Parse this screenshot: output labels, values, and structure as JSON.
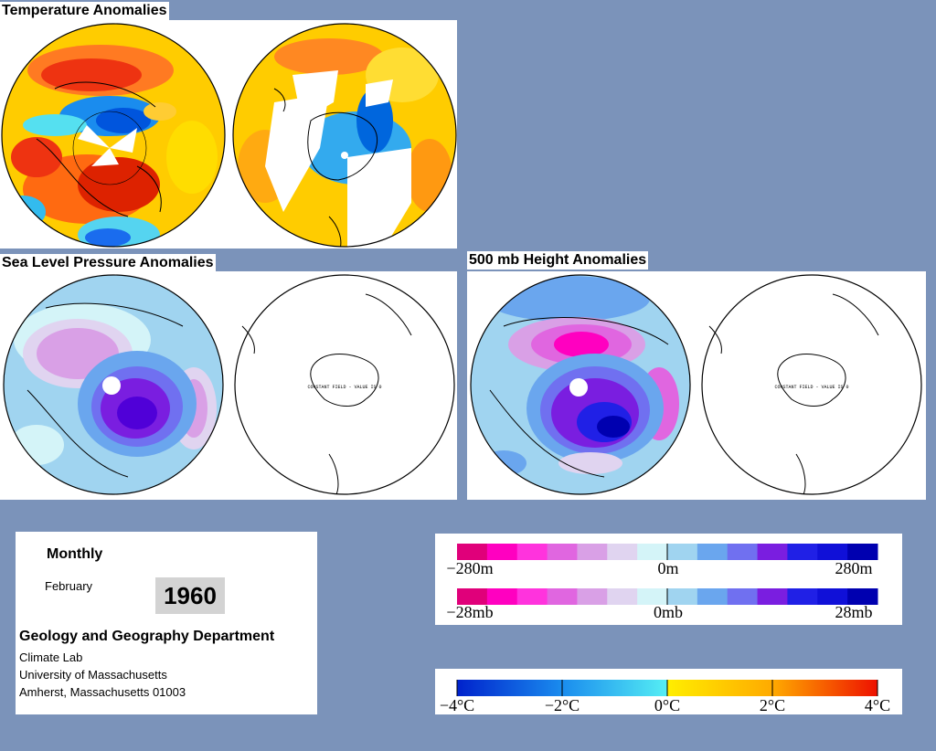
{
  "sections": {
    "temperature": {
      "title": "Temperature Anomalies"
    },
    "slp": {
      "title": "Sea Level Pressure Anomalies"
    },
    "height": {
      "title": "500 mb Height Anomalies"
    }
  },
  "constant_field_label": "CONSTANT FIELD - VALUE IS 0",
  "info": {
    "period": "Monthly",
    "month": "February",
    "year": "1960",
    "department": "Geology and Geography Department",
    "lab": "Climate Lab",
    "university": "University of Massachusetts",
    "address": "Amherst, Massachusetts 01003"
  },
  "legends": {
    "height": {
      "min": "−280m",
      "mid": "0m",
      "max": "280m"
    },
    "pressure": {
      "min": "−28mb",
      "mid": "0mb",
      "max": "28mb"
    },
    "temperature": {
      "labels": [
        "−4°C",
        "−2°C",
        "0°C",
        "2°C",
        "4°C"
      ]
    }
  },
  "colors": {
    "background": "#7b93ba",
    "pressure_ramp": [
      "#e0007a",
      "#ff00c0",
      "#ff33dd",
      "#e066e0",
      "#d9a0e6",
      "#e0d4f0",
      "#d4f4f8",
      "#a0d4f0",
      "#6aa6ee",
      "#7070f0",
      "#7a1ee0",
      "#2020e6",
      "#1010d8",
      "#0000b0"
    ],
    "temperature_ramp": [
      "#0033cc",
      "#0066dd",
      "#1a8cee",
      "#33bbee",
      "#55e0f0",
      "#ffee00",
      "#ffcc00",
      "#ffaa00",
      "#ff7700",
      "#ff4400",
      "#ee2200"
    ]
  }
}
